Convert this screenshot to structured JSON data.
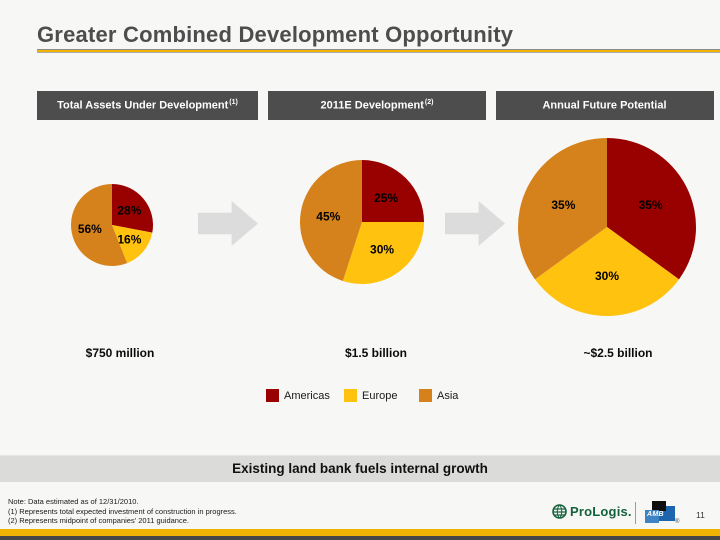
{
  "slide": {
    "title": "Greater Combined Development Opportunity"
  },
  "column_headers": [
    {
      "label": "Total Assets Under Development",
      "sup": "(1)"
    },
    {
      "label": "2011E Development",
      "sup": "(2)"
    },
    {
      "label": "Annual Future Potential",
      "sup": ""
    }
  ],
  "chart_data": [
    {
      "type": "pie",
      "title": "Total Assets Under Development (1)",
      "categories": [
        "Americas",
        "Europe",
        "Asia"
      ],
      "values": [
        28,
        16,
        56
      ],
      "unit": "%",
      "colors": [
        "#990000",
        "#FFC20E",
        "#D6821C"
      ],
      "start_angle_deg": 0,
      "direction": "clockwise",
      "radius_px": 41,
      "total_label": "$750 million"
    },
    {
      "type": "pie",
      "title": "2011E Development (2)",
      "categories": [
        "Americas",
        "Europe",
        "Asia"
      ],
      "values": [
        25,
        30,
        45
      ],
      "unit": "%",
      "colors": [
        "#990000",
        "#FFC20E",
        "#D6821C"
      ],
      "start_angle_deg": 0,
      "direction": "clockwise",
      "radius_px": 62,
      "total_label": "$1.5 billion"
    },
    {
      "type": "pie",
      "title": "Annual Future Potential",
      "categories": [
        "Americas",
        "Europe",
        "Asia"
      ],
      "values": [
        35,
        30,
        35
      ],
      "unit": "%",
      "colors": [
        "#990000",
        "#FFC20E",
        "#D6821C"
      ],
      "start_angle_deg": 0,
      "direction": "clockwise",
      "radius_px": 89,
      "total_label": "~$2.5 billion"
    }
  ],
  "totals": [
    "$750 million",
    "$1.5 billion",
    "~$2.5 billion"
  ],
  "legend": {
    "items": [
      {
        "label": "Americas",
        "color": "#990000"
      },
      {
        "label": "Europe",
        "color": "#FFC20E"
      },
      {
        "label": "Asia",
        "color": "#D6821C"
      }
    ]
  },
  "banner": {
    "text": "Existing land bank fuels internal growth"
  },
  "notes": [
    "Note: Data estimated as of 12/31/2010.",
    "(1) Represents total expected investment of construction in progress.",
    "(2) Represents midpoint of companies' 2011 guidance."
  ],
  "footer": {
    "prologis_label": "ProLogis.",
    "amb_label": "AMB",
    "amb_reg": "®",
    "page_number": "11"
  }
}
